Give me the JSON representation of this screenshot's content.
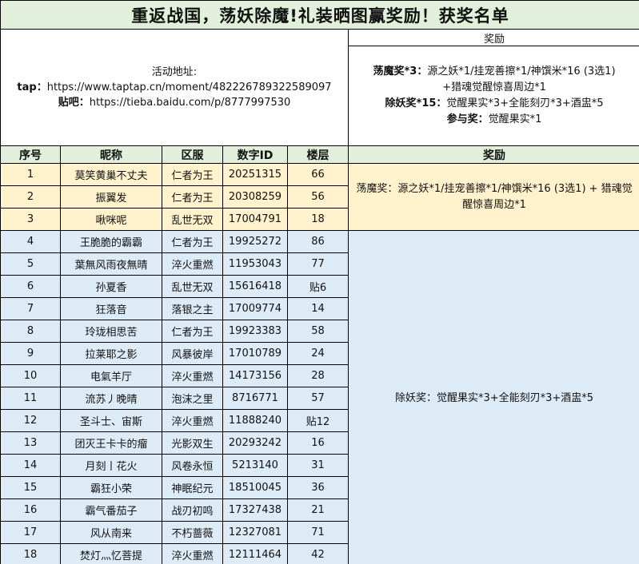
{
  "title": "重返战国，荡妖除魔!礼装晒图赢奖励！获奖名单",
  "info": {
    "label": "活动地址:",
    "tap_label": "tap：",
    "tap_url": "https://www.taptap.cn/moment/482226789322589097",
    "tieba_label": "贴吧：",
    "tieba_url": "https://tieba.baidu.com/p/8777997530"
  },
  "rewards_box": {
    "header": "奖励",
    "lines": [
      {
        "label": "荡魔奖*3：",
        "text": "源之妖*1/挂宠善擦*1/神馔米*16 (3选1)"
      },
      {
        "label": "",
        "text": "+猎魂觉醒惊喜周边*1"
      },
      {
        "label": "除妖奖*15：",
        "text": "觉醒果实*3+全能刻刃*3+酒盅*5"
      },
      {
        "label": "参与奖：",
        "text": "觉醒果实*1"
      }
    ]
  },
  "columns": [
    "序号",
    "昵称",
    "区服",
    "数字ID",
    "楼层",
    "奖励"
  ],
  "reward_groups": [
    "荡魔奖：源之妖*1/挂宠善擦*1/神馔米*16 (3选1) + 猎魂觉醒惊喜周边*1",
    "除妖奖：觉醒果实*3+全能刻刃*3+酒盅*5"
  ],
  "rows": [
    [
      "1",
      "莫笑黄巢不丈夫",
      "仁者为王",
      "20251315",
      "66"
    ],
    [
      "2",
      "振翼发",
      "仁者为王",
      "20308259",
      "56"
    ],
    [
      "3",
      "啾咪呢",
      "乱世无双",
      "17004791",
      "18"
    ],
    [
      "4",
      "王脆脆的霸霸",
      "仁者为王",
      "19925272",
      "86"
    ],
    [
      "5",
      "葉無风雨夜無晴",
      "淬火重燃",
      "11953043",
      "77"
    ],
    [
      "6",
      "孙夏香",
      "乱世无双",
      "15616418",
      "贴6"
    ],
    [
      "7",
      "狂落音",
      "落银之主",
      "17009774",
      "14"
    ],
    [
      "8",
      "玲珑相思苦",
      "仁者为王",
      "19923383",
      "58"
    ],
    [
      "9",
      "拉莱耶之影",
      "风暴彼岸",
      "17010789",
      "24"
    ],
    [
      "10",
      "电氣羊厅",
      "淬火重燃",
      "14173156",
      "28"
    ],
    [
      "11",
      "流苏丿晚晴",
      "泡沫之里",
      "8716771",
      "57"
    ],
    [
      "12",
      "圣斗士、宙斯",
      "淬火重燃",
      "11888240",
      "贴12"
    ],
    [
      "13",
      "团灭王卡卡的瘤",
      "光影双生",
      "20293242",
      "16"
    ],
    [
      "14",
      "月刻丨花火",
      "风卷永恒",
      "5213140",
      "31"
    ],
    [
      "15",
      "霸狂小荣",
      "神眠纪元",
      "18510045",
      "36"
    ],
    [
      "16",
      "霸气番茄子",
      "战刃初鸣",
      "17327438",
      "21"
    ],
    [
      "17",
      "风从南来",
      "不朽蔷薇",
      "12327081",
      "71"
    ],
    [
      "18",
      "焚灯灬忆菩提",
      "淬火重燃",
      "12111464",
      "42"
    ]
  ],
  "colors": {
    "header_bg": "#e2efda",
    "top_tier_bg": "#fff2cc",
    "second_tier_bg": "#ddebf7"
  }
}
